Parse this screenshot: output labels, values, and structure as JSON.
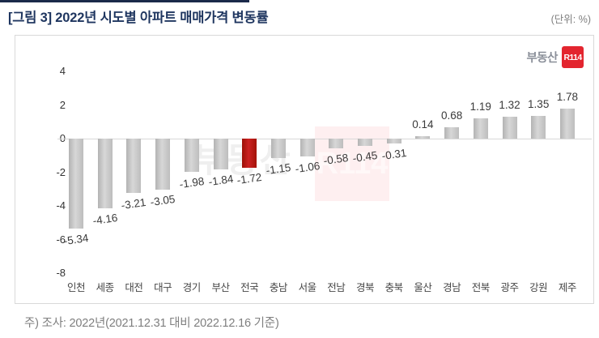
{
  "page": {
    "title": "[그림 3] 2022년 시도별 아파트 매매가격 변동률",
    "unit_label": "(단위: %)",
    "note": "주) 조사: 2022년(2021.12.31 대비 2022.12.16 기준)"
  },
  "logo": {
    "text": "부동산",
    "badge": "R114"
  },
  "watermark": {
    "text": "부동산",
    "badge": "R114"
  },
  "colors": {
    "bar_gray": "#c4c4c4",
    "bar_highlight_red": "#c00000",
    "title_navy": "#1e355f",
    "gridline": "#d9d9d9",
    "logo_red": "#e3252f"
  },
  "chart_data": {
    "type": "bar",
    "title": "2022년 시도별 아파트 매매가격 변동률",
    "unit": "%",
    "categories": [
      "인천",
      "세종",
      "대전",
      "대구",
      "경기",
      "부산",
      "전국",
      "충남",
      "서울",
      "전남",
      "경북",
      "충북",
      "울산",
      "경남",
      "전북",
      "광주",
      "강원",
      "제주"
    ],
    "values": [
      -5.34,
      -4.16,
      -3.21,
      -3.05,
      -1.98,
      -1.84,
      -1.72,
      -1.15,
      -1.06,
      -0.58,
      -0.45,
      -0.31,
      0.14,
      0.68,
      1.19,
      1.32,
      1.35,
      1.78
    ],
    "value_labels": [
      "-5.34",
      "-4.16",
      "-3.21",
      "-3.05",
      "-1.98",
      "-1.84",
      "-1.72",
      "-1.15",
      "-1.06",
      "-0.58",
      "-0.45",
      "-0.31",
      "0.14",
      "0.68",
      "1.19",
      "1.32",
      "1.35",
      "1.78"
    ],
    "highlighted_category": "전국",
    "y_ticks": [
      4,
      2,
      0,
      -2,
      -4,
      -6,
      -8
    ],
    "ylim": [
      -8,
      4
    ],
    "xlabel": "",
    "ylabel": "",
    "grid": "zero-line-only",
    "legend": "none"
  }
}
